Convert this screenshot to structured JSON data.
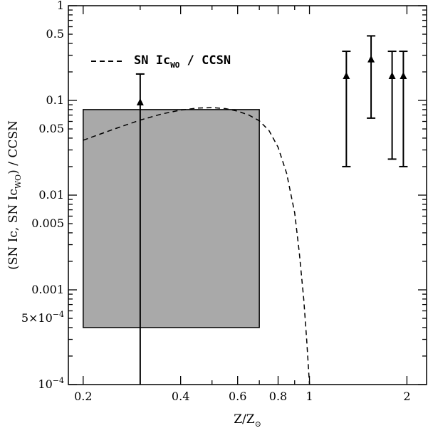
{
  "chart_data": {
    "type": "scatter",
    "xscale": "log",
    "yscale": "log",
    "xlim": [
      0.18,
      2.3
    ],
    "ylim": [
      0.0001,
      1
    ],
    "xticks": [
      {
        "value": 0.2,
        "label": "0.2"
      },
      {
        "value": 0.4,
        "label": "0.4"
      },
      {
        "value": 0.6,
        "label": "0.6"
      },
      {
        "value": 0.8,
        "label": "0.8"
      },
      {
        "value": 1,
        "label": "1"
      },
      {
        "value": 2,
        "label": "2"
      }
    ],
    "yticks": [
      {
        "value": 1,
        "label": "1"
      },
      {
        "value": 0.5,
        "label": "0.5"
      },
      {
        "value": 0.1,
        "label": "0.1"
      },
      {
        "value": 0.05,
        "label": "0.05"
      },
      {
        "value": 0.01,
        "label": "0.01"
      },
      {
        "value": 0.005,
        "label": "0.005"
      },
      {
        "value": 0.001,
        "label": "0.001"
      },
      {
        "value": 0.0005,
        "label": "5×10",
        "sup": "−4"
      },
      {
        "value": 0.0001,
        "label": "10",
        "sup": "−4"
      }
    ],
    "xlabel": {
      "main": "Z/Z",
      "sub": "⊙"
    },
    "ylabel": {
      "pre": "(SN Ic, SN Ic",
      "sub": "WO",
      "post": ") / CCSN"
    },
    "legend": {
      "label": "SN Ic",
      "sub": "WO",
      "post": " / CCSN",
      "style": "dashed",
      "placement": "top-left"
    },
    "shaded_region": {
      "x": [
        0.2,
        0.7
      ],
      "y": [
        0.0004,
        0.08
      ],
      "color": "#a9a9a9"
    },
    "curve": {
      "name": "SN Ic_WO / CCSN",
      "style": "dashed",
      "points": [
        [
          0.2,
          0.038
        ],
        [
          0.25,
          0.05
        ],
        [
          0.3,
          0.062
        ],
        [
          0.35,
          0.072
        ],
        [
          0.4,
          0.079
        ],
        [
          0.45,
          0.083
        ],
        [
          0.5,
          0.084
        ],
        [
          0.55,
          0.082
        ],
        [
          0.6,
          0.077
        ],
        [
          0.65,
          0.07
        ],
        [
          0.7,
          0.061
        ],
        [
          0.75,
          0.048
        ],
        [
          0.8,
          0.032
        ],
        [
          0.85,
          0.017
        ],
        [
          0.9,
          0.0065
        ],
        [
          0.93,
          0.0025
        ],
        [
          0.96,
          0.0008
        ],
        [
          0.98,
          0.0003
        ],
        [
          1.0,
          0.0001
        ]
      ]
    },
    "points": [
      {
        "x": 0.3,
        "y": 0.095,
        "ylow": 0.0001,
        "yhigh": 0.19,
        "low_cap": false
      },
      {
        "x": 1.3,
        "y": 0.18,
        "ylow": 0.02,
        "yhigh": 0.33,
        "low_cap": true
      },
      {
        "x": 1.55,
        "y": 0.27,
        "ylow": 0.065,
        "yhigh": 0.48,
        "low_cap": true
      },
      {
        "x": 1.8,
        "y": 0.18,
        "ylow": 0.024,
        "yhigh": 0.33,
        "low_cap": true
      },
      {
        "x": 1.95,
        "y": 0.18,
        "ylow": 0.02,
        "yhigh": 0.33,
        "low_cap": true
      }
    ],
    "colors": {
      "axes": "#000000",
      "markers": "#000000",
      "background": "#ffffff"
    }
  }
}
